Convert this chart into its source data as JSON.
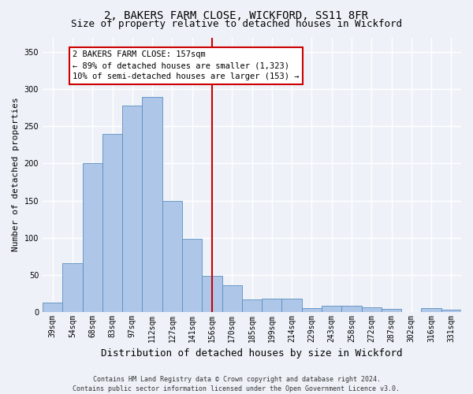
{
  "title": "2, BAKERS FARM CLOSE, WICKFORD, SS11 8FR",
  "subtitle": "Size of property relative to detached houses in Wickford",
  "xlabel": "Distribution of detached houses by size in Wickford",
  "ylabel": "Number of detached properties",
  "categories": [
    "39sqm",
    "54sqm",
    "68sqm",
    "83sqm",
    "97sqm",
    "112sqm",
    "127sqm",
    "141sqm",
    "156sqm",
    "170sqm",
    "185sqm",
    "199sqm",
    "214sqm",
    "229sqm",
    "243sqm",
    "258sqm",
    "272sqm",
    "287sqm",
    "302sqm",
    "316sqm",
    "331sqm"
  ],
  "values": [
    12,
    65,
    200,
    240,
    278,
    290,
    150,
    98,
    49,
    36,
    17,
    18,
    18,
    5,
    8,
    8,
    6,
    4,
    0,
    5,
    3
  ],
  "bar_color": "#aec6e8",
  "bar_edge_color": "#5a8fc0",
  "vline_index": 8,
  "vline_color": "#cc0000",
  "annotation_text": "2 BAKERS FARM CLOSE: 157sqm\n← 89% of detached houses are smaller (1,323)\n10% of semi-detached houses are larger (153) →",
  "annotation_box_color": "#cc0000",
  "background_color": "#eef2f8",
  "grid_color": "#ffffff",
  "footer": "Contains HM Land Registry data © Crown copyright and database right 2024.\nContains public sector information licensed under the Open Government Licence v3.0.",
  "ylim": [
    0,
    370
  ],
  "yticks": [
    0,
    50,
    100,
    150,
    200,
    250,
    300,
    350
  ],
  "title_fontsize": 10,
  "subtitle_fontsize": 9,
  "xlabel_fontsize": 9,
  "ylabel_fontsize": 8,
  "tick_fontsize": 7,
  "annotation_fontsize": 7.5,
  "footer_fontsize": 6
}
